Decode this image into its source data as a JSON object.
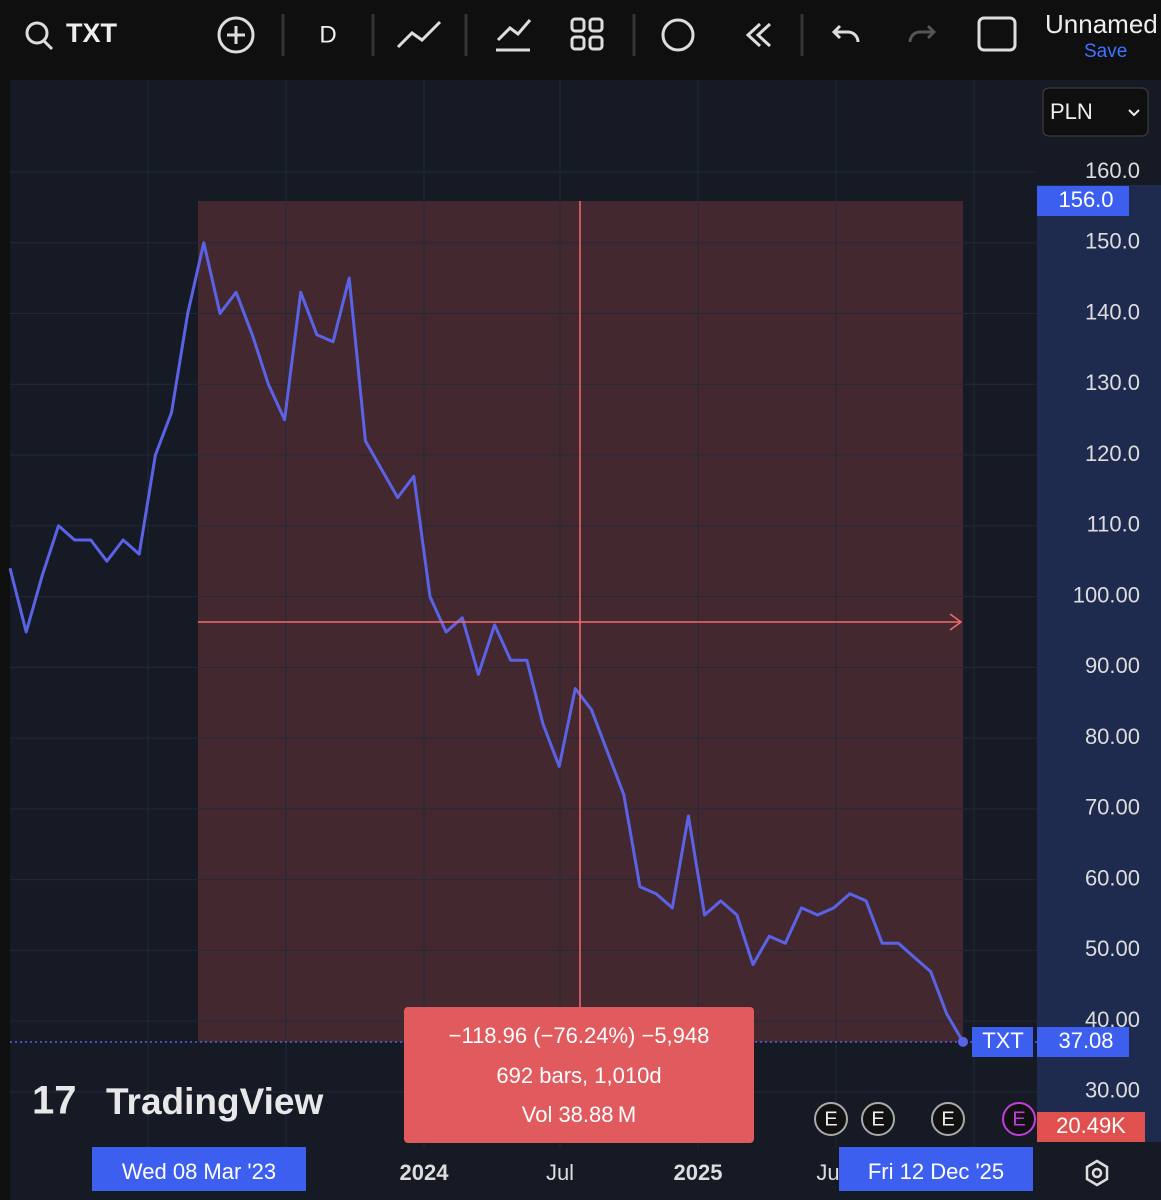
{
  "toolbar": {
    "symbol": "TXT",
    "interval": "D",
    "layout_name": "Unnamed",
    "save": "Save"
  },
  "chart_data": {
    "type": "line",
    "currency": "PLN",
    "watermark": "TradingView",
    "series": [
      {
        "name": "TXT",
        "color": "#5a63e6",
        "values": [
          104,
          95,
          103,
          110,
          108,
          108,
          105,
          108,
          106,
          120,
          126,
          140,
          150,
          140,
          143,
          137,
          130,
          125,
          143,
          137,
          136,
          145,
          122,
          118,
          114,
          117,
          100,
          95,
          97,
          89,
          96,
          91,
          91,
          82,
          76,
          87,
          84,
          78,
          72,
          59,
          58,
          56,
          69,
          55,
          57,
          55,
          48,
          52,
          51,
          56,
          55,
          56,
          58,
          57,
          51,
          51,
          49,
          47,
          41,
          37.08
        ]
      }
    ],
    "ylim": [
      22.5,
      173
    ],
    "yticks": [
      {
        "value": 160,
        "label": "160.0"
      },
      {
        "value": 150,
        "label": "150.0"
      },
      {
        "value": 140,
        "label": "140.0"
      },
      {
        "value": 130,
        "label": "130.0"
      },
      {
        "value": 120,
        "label": "120.0"
      },
      {
        "value": 110,
        "label": "110.0"
      },
      {
        "value": 100,
        "label": "100.00"
      },
      {
        "value": 90,
        "label": "90.00"
      },
      {
        "value": 80,
        "label": "80.00"
      },
      {
        "value": 70,
        "label": "70.00"
      },
      {
        "value": 60,
        "label": "60.00"
      },
      {
        "value": 50,
        "label": "50.00"
      },
      {
        "value": 40,
        "label": "40.00"
      },
      {
        "value": 30,
        "label": "30.00"
      }
    ],
    "time_labels": [
      "2024",
      "Jul",
      "2025",
      "Ju"
    ],
    "measure": {
      "start_date": "Wed 08 Mar '23",
      "end_date": "Fri 12 Dec '25",
      "start_price": {
        "value": 156,
        "label": "156.0"
      },
      "lines": [
        "−118.96 (−76.24%) −5,948",
        "692 bars, 1,010d",
        "Vol 38.88 M"
      ]
    },
    "volume_label": "20.49K",
    "events": [
      "E",
      "E",
      "E",
      "E"
    ]
  }
}
